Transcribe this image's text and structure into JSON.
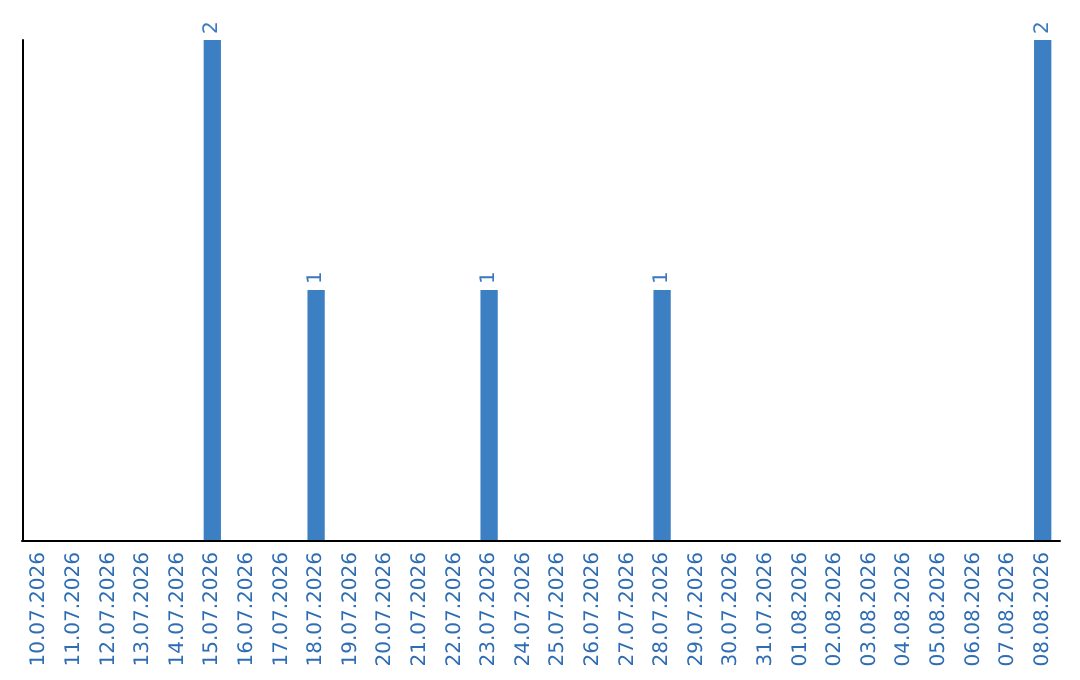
{
  "chart_data": {
    "type": "bar",
    "categories": [
      "10.07.2026",
      "11.07.2026",
      "12.07.2026",
      "13.07.2026",
      "14.07.2026",
      "15.07.2026",
      "16.07.2026",
      "17.07.2026",
      "18.07.2026",
      "19.07.2026",
      "20.07.2026",
      "21.07.2026",
      "22.07.2026",
      "23.07.2026",
      "24.07.2026",
      "25.07.2026",
      "26.07.2026",
      "27.07.2026",
      "28.07.2026",
      "29.07.2026",
      "30.07.2026",
      "31.07.2026",
      "01.08.2026",
      "02.08.2026",
      "03.08.2026",
      "04.08.2026",
      "05.08.2026",
      "06.08.2026",
      "07.08.2026",
      "08.08.2026"
    ],
    "values": [
      0,
      0,
      0,
      0,
      0,
      2,
      0,
      0,
      1,
      0,
      0,
      0,
      0,
      1,
      0,
      0,
      0,
      0,
      1,
      0,
      0,
      0,
      0,
      0,
      0,
      0,
      0,
      0,
      0,
      2
    ],
    "value_labels": [
      null,
      null,
      null,
      null,
      null,
      "2",
      null,
      null,
      "1",
      null,
      null,
      null,
      null,
      "1",
      null,
      null,
      null,
      null,
      "1",
      null,
      null,
      null,
      null,
      null,
      null,
      null,
      null,
      null,
      null,
      "2"
    ],
    "color": "#3d7fc3"
  }
}
